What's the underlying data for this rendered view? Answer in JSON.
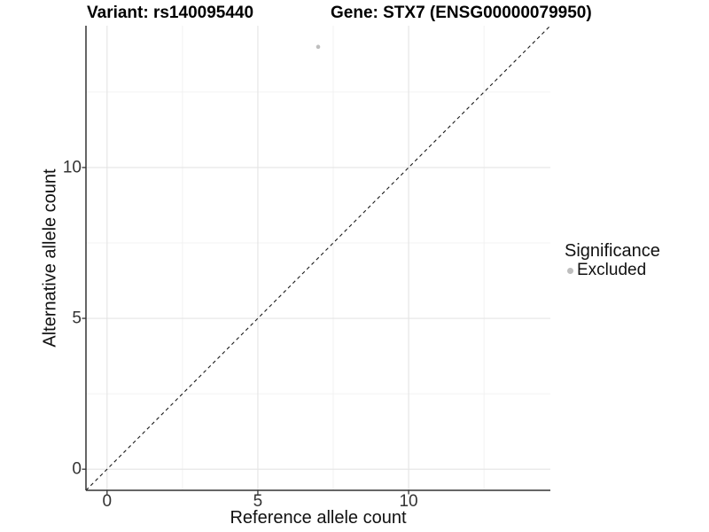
{
  "titles": {
    "variant": "Variant: rs140095440",
    "gene": "Gene: STX7 (ENSG00000079950)"
  },
  "chart_data": {
    "type": "scatter",
    "xlabel": "Reference allele count",
    "ylabel": "Alternative allele count",
    "xlim": [
      -0.7,
      14.7
    ],
    "ylim": [
      -0.7,
      14.7
    ],
    "x_ticks": [
      0,
      5,
      10
    ],
    "y_ticks": [
      0,
      5,
      10
    ],
    "x_minor_ticks": [
      2.5,
      7.5,
      12.5
    ],
    "y_minor_ticks": [
      2.5,
      7.5,
      12.5
    ],
    "grid": true,
    "identity_line": {
      "slope": 1,
      "intercept": 0,
      "style": "dashed",
      "color": "#1a1a1a"
    },
    "series": [
      {
        "name": "Excluded",
        "color": "#bebebe",
        "points": [
          {
            "x": 7,
            "y": 14
          }
        ]
      }
    ],
    "legend": {
      "title": "Significance",
      "position": "right",
      "entries": [
        {
          "label": "Excluded",
          "color": "#bebebe"
        }
      ]
    },
    "style": {
      "grid_major_color": "#e4e4e4",
      "grid_minor_color": "#efefef",
      "axis_color": "#333333",
      "point_radius": 2.3,
      "background": "#ffffff"
    }
  }
}
